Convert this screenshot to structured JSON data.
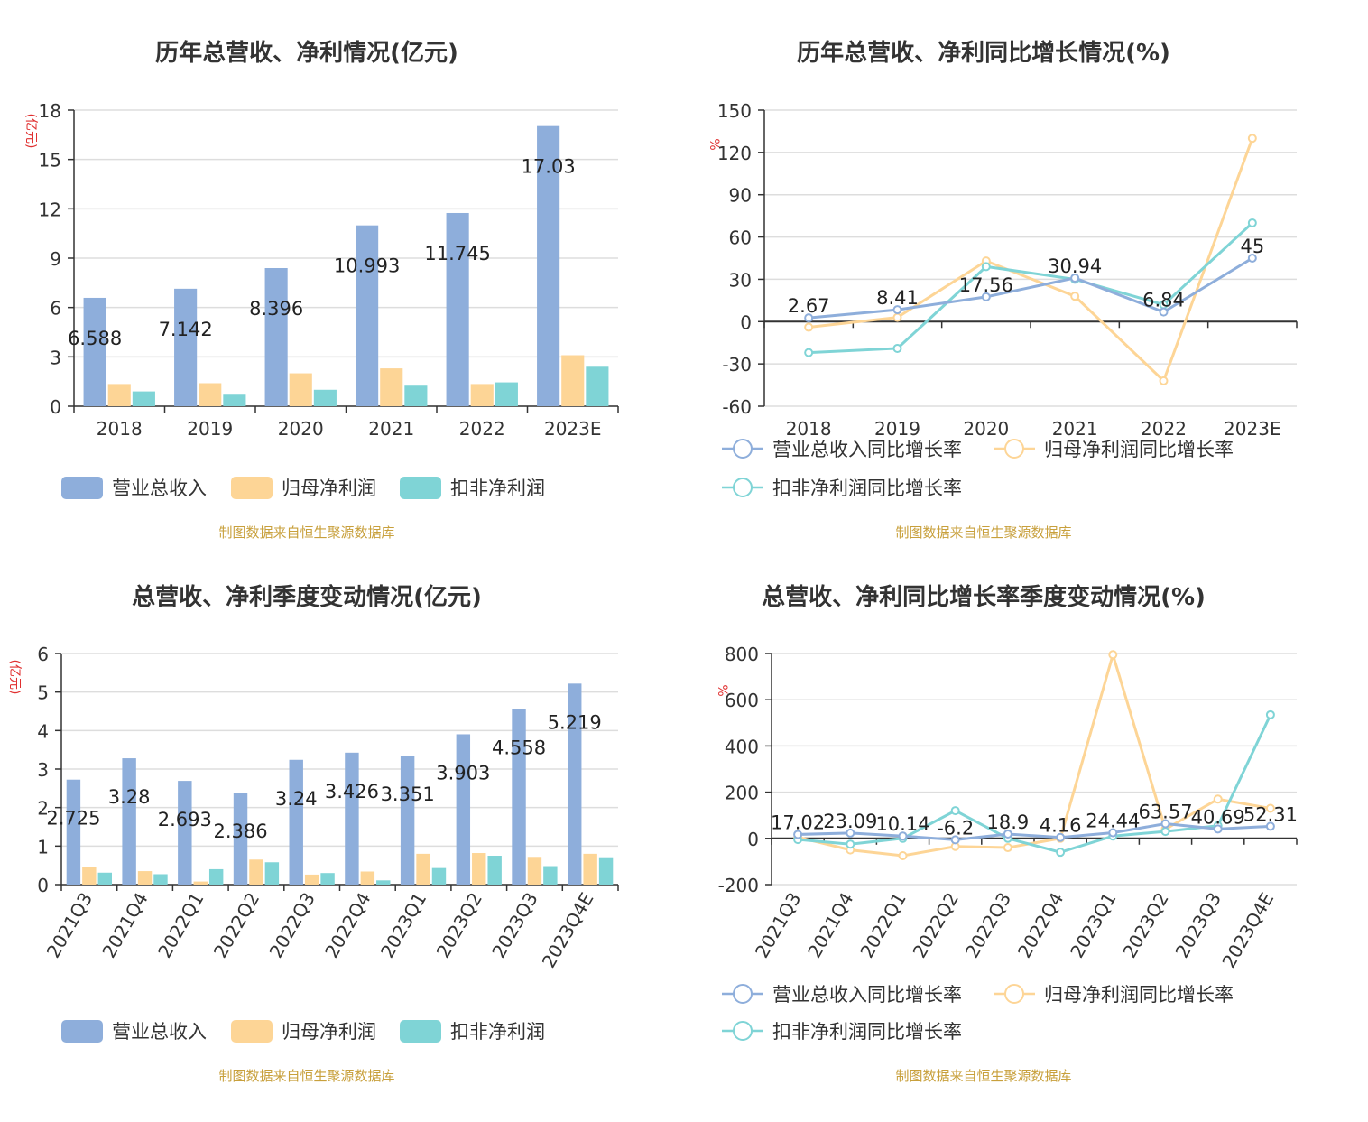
{
  "colors": {
    "revenue": "#8eaedb",
    "net_profit": "#fdd596",
    "deducted_profit": "#7fd4d6",
    "grid": "#dddddd",
    "axis": "#333333",
    "unit": "#e03030",
    "source": "#c8a03c"
  },
  "chart_data": [
    {
      "id": "annual-amounts",
      "type": "bar",
      "title": "历年总营收、净利情况(亿元)",
      "ylabel": "(亿元)",
      "categories": [
        "2018",
        "2019",
        "2020",
        "2021",
        "2022",
        "2023E"
      ],
      "ylim": [
        0,
        18
      ],
      "yticks": [
        0,
        3,
        6,
        9,
        12,
        15,
        18
      ],
      "series": [
        {
          "name": "营业总收入",
          "values": [
            6.588,
            7.142,
            8.396,
            10.993,
            11.745,
            17.03
          ],
          "labels": [
            "6.588",
            "7.142",
            "8.396",
            "10.993",
            "11.745",
            "17.03"
          ]
        },
        {
          "name": "归母净利润",
          "values": [
            1.35,
            1.4,
            2.0,
            2.3,
            1.35,
            3.1
          ]
        },
        {
          "name": "扣非净利润",
          "values": [
            0.9,
            0.7,
            1.0,
            1.25,
            1.45,
            2.4
          ]
        }
      ],
      "legend": "bottom",
      "source": "制图数据来自恒生聚源数据库"
    },
    {
      "id": "annual-growth",
      "type": "line",
      "title": "历年总营收、净利同比增长情况(%)",
      "ylabel": "%",
      "categories": [
        "2018",
        "2019",
        "2020",
        "2021",
        "2022",
        "2023E"
      ],
      "ylim": [
        -60,
        150
      ],
      "yticks": [
        -60,
        -30,
        0,
        30,
        60,
        90,
        120,
        150
      ],
      "series": [
        {
          "name": "营业总收入同比增长率",
          "values": [
            2.67,
            8.41,
            17.56,
            30.94,
            6.84,
            45
          ],
          "labels": [
            "2.67",
            "8.41",
            "17.56",
            "30.94",
            "6.84",
            "45"
          ]
        },
        {
          "name": "归母净利润同比增长率",
          "values": [
            -4,
            3,
            43,
            18,
            -42,
            130
          ]
        },
        {
          "name": "扣非净利润同比增长率",
          "values": [
            -22,
            -19,
            39,
            30,
            12,
            70
          ]
        }
      ],
      "legend": "bottom",
      "source": "制图数据来自恒生聚源数据库"
    },
    {
      "id": "quarterly-amounts",
      "type": "bar",
      "title": "总营收、净利季度变动情况(亿元)",
      "ylabel": "(亿元)",
      "categories": [
        "2021Q3",
        "2021Q4",
        "2022Q1",
        "2022Q2",
        "2022Q3",
        "2022Q4",
        "2023Q1",
        "2023Q2",
        "2023Q3",
        "2023Q4E"
      ],
      "ylim": [
        0,
        6
      ],
      "yticks": [
        0,
        1,
        2,
        3,
        4,
        5,
        6
      ],
      "series": [
        {
          "name": "营业总收入",
          "values": [
            2.725,
            3.28,
            2.693,
            2.386,
            3.24,
            3.426,
            3.351,
            3.903,
            4.558,
            5.219
          ],
          "labels": [
            "2.725",
            "3.28",
            "2.693",
            "2.386",
            "3.24",
            "3.426",
            "3.351",
            "3.903",
            "4.558",
            "5.219"
          ]
        },
        {
          "name": "归母净利润",
          "values": [
            0.46,
            0.35,
            0.08,
            0.65,
            0.26,
            0.34,
            0.8,
            0.82,
            0.72,
            0.8
          ]
        },
        {
          "name": "扣非净利润",
          "values": [
            0.31,
            0.27,
            0.4,
            0.58,
            0.3,
            0.11,
            0.43,
            0.75,
            0.48,
            0.71
          ]
        }
      ],
      "legend": "bottom",
      "source": "制图数据来自恒生聚源数据库"
    },
    {
      "id": "quarterly-growth",
      "type": "line",
      "title": "总营收、净利同比增长率季度变动情况(%)",
      "ylabel": "%",
      "categories": [
        "2021Q3",
        "2021Q4",
        "2022Q1",
        "2022Q2",
        "2022Q3",
        "2022Q4",
        "2023Q1",
        "2023Q2",
        "2023Q3",
        "2023Q4E"
      ],
      "ylim": [
        -200,
        800
      ],
      "yticks": [
        -200,
        0,
        200,
        400,
        600,
        800
      ],
      "series": [
        {
          "name": "营业总收入同比增长率",
          "values": [
            17.02,
            23.09,
            10.14,
            -6.2,
            18.9,
            4.16,
            24.44,
            63.57,
            40.69,
            52.31
          ],
          "labels": [
            "17.02",
            "23.09",
            "10.14",
            "-6.2",
            "18.9",
            "4.16",
            "24.44",
            "63.57",
            "40.69",
            "52.31"
          ]
        },
        {
          "name": "归母净利润同比增长率",
          "values": [
            5,
            -50,
            -75,
            -35,
            -40,
            0,
            795,
            40,
            170,
            130
          ]
        },
        {
          "name": "扣非净利润同比增长率",
          "values": [
            -5,
            -25,
            0,
            120,
            0,
            -60,
            10,
            30,
            55,
            535
          ]
        }
      ],
      "legend": "bottom",
      "source": "制图数据来自恒生聚源数据库"
    }
  ]
}
